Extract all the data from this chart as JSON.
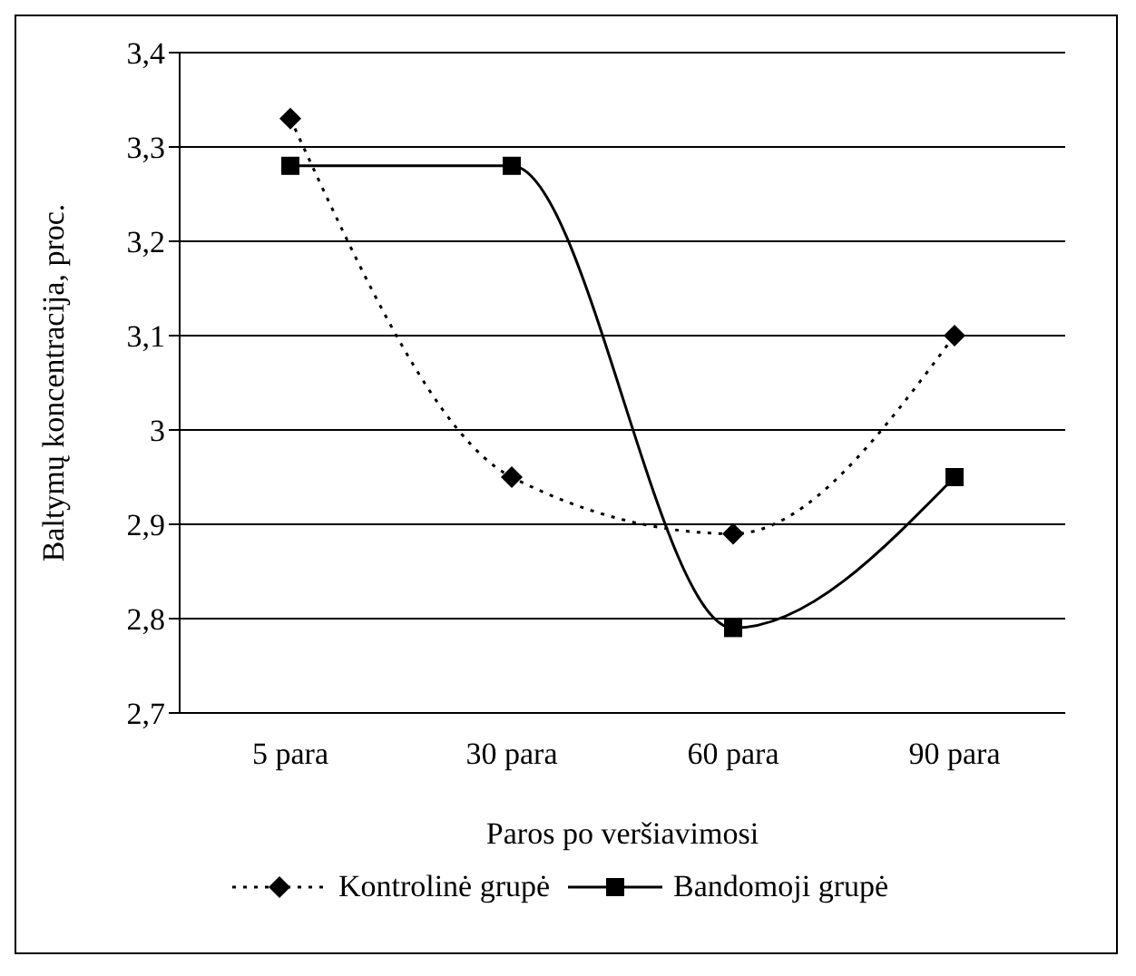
{
  "chart_data": {
    "type": "line",
    "categories": [
      "5 para",
      "30 para",
      "60 para",
      "90 para"
    ],
    "series": [
      {
        "name": "Kontrolinė grupė",
        "color": "#000000",
        "marker": "diamond",
        "line_style": "dotted",
        "values": [
          3.33,
          2.95,
          2.89,
          3.1
        ]
      },
      {
        "name": "Bandomoji grupė",
        "color": "#000000",
        "marker": "square",
        "line_style": "solid",
        "values": [
          3.28,
          3.28,
          2.79,
          2.95
        ]
      }
    ],
    "xlabel": "Paros po veršiavimosi",
    "ylabel": "Baltymų koncentracija, proc.",
    "ylim": [
      2.7,
      3.4
    ],
    "yticks": [
      {
        "value": 2.7,
        "label": "2,7"
      },
      {
        "value": 2.8,
        "label": "2,8"
      },
      {
        "value": 2.9,
        "label": "2,9"
      },
      {
        "value": 3.0,
        "label": "3"
      },
      {
        "value": 3.1,
        "label": "3,1"
      },
      {
        "value": 3.2,
        "label": "3,2"
      },
      {
        "value": 3.3,
        "label": "3,3"
      },
      {
        "value": 3.4,
        "label": "3,4"
      }
    ],
    "grid": "y",
    "legend": "bottom"
  }
}
